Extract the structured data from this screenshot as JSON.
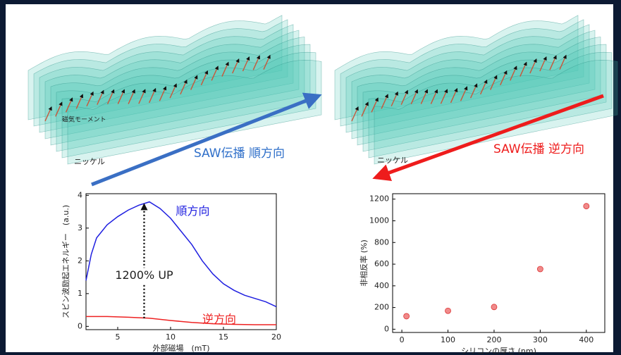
{
  "illustrations": {
    "left": {
      "moment_label": "磁気モーメント",
      "material_label": "ニッケル",
      "direction_label": "SAW伝播 順方向"
    },
    "right": {
      "material_label": "ニッケル",
      "direction_label": "SAW伝播 逆方向"
    }
  },
  "chart_data": [
    {
      "type": "line",
      "y_label": "スピン波励起エネルギー　(a.u.)",
      "x_label": "外部磁場　(mT)",
      "annotation": "1200% UP",
      "xlim": [
        2,
        20
      ],
      "xticks": [
        5,
        10,
        15,
        20
      ],
      "ylim": [
        -0.1,
        4.05
      ],
      "yticks": [
        0,
        1,
        2,
        3,
        4
      ],
      "series": [
        {
          "name": "順方向",
          "color": "#1f1fe0",
          "x": [
            2,
            2.5,
            3,
            4,
            5,
            6,
            7,
            8,
            9,
            10,
            11,
            12,
            13,
            14,
            15,
            16,
            17,
            18,
            19,
            20
          ],
          "values": [
            1.4,
            2.2,
            2.7,
            3.1,
            3.35,
            3.55,
            3.7,
            3.8,
            3.6,
            3.3,
            2.9,
            2.5,
            2.0,
            1.6,
            1.3,
            1.1,
            0.95,
            0.85,
            0.75,
            0.6
          ]
        },
        {
          "name": "逆方向",
          "color": "#ee2222",
          "x": [
            2,
            4,
            6,
            8,
            10,
            12,
            14,
            16,
            18,
            20
          ],
          "values": [
            0.3,
            0.3,
            0.28,
            0.25,
            0.18,
            0.12,
            0.08,
            0.06,
            0.05,
            0.05
          ]
        }
      ]
    },
    {
      "type": "scatter",
      "y_label": "非相反率 (%)",
      "x_label": "シリコンの厚さ (nm)",
      "color": "#f08a8a",
      "xlim": [
        -20,
        440
      ],
      "xticks": [
        0,
        100,
        200,
        300,
        400
      ],
      "ylim": [
        -30,
        1250
      ],
      "yticks": [
        0,
        200,
        400,
        600,
        800,
        1000,
        1200
      ],
      "x": [
        10,
        100,
        200,
        300,
        400
      ],
      "values": [
        120,
        170,
        205,
        555,
        1135
      ]
    }
  ]
}
